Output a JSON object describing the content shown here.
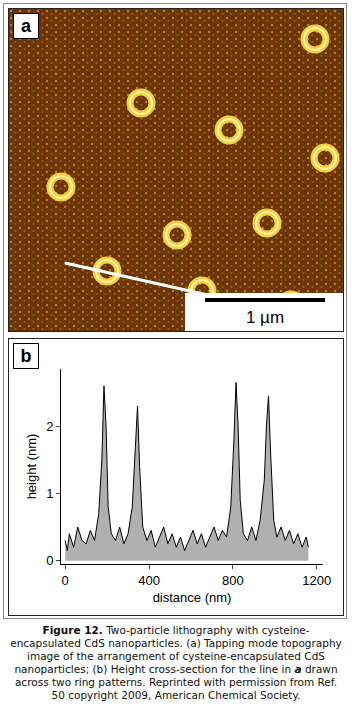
{
  "panel_a": {
    "label": "a",
    "scale_bar": "1 µm"
  },
  "chart_data": {
    "type": "area",
    "label": "b",
    "x_label": "distance (nm)",
    "y_label": "height (nm)",
    "x": [
      0,
      10,
      20,
      40,
      60,
      80,
      100,
      120,
      140,
      160,
      175,
      185,
      195,
      205,
      220,
      240,
      260,
      280,
      300,
      320,
      335,
      345,
      355,
      370,
      390,
      410,
      430,
      450,
      470,
      490,
      510,
      530,
      550,
      570,
      590,
      610,
      630,
      650,
      670,
      690,
      710,
      730,
      750,
      770,
      790,
      805,
      815,
      825,
      835,
      850,
      870,
      890,
      910,
      930,
      950,
      960,
      970,
      980,
      995,
      1010,
      1030,
      1050,
      1070,
      1090,
      1110,
      1130,
      1150,
      1160
    ],
    "values": [
      0.3,
      0.15,
      0.4,
      0.2,
      0.5,
      0.3,
      0.25,
      0.45,
      0.3,
      0.7,
      1.5,
      2.6,
      2.0,
      0.8,
      0.4,
      0.3,
      0.5,
      0.25,
      0.4,
      0.8,
      1.7,
      2.3,
      1.4,
      0.5,
      0.3,
      0.45,
      0.2,
      0.35,
      0.5,
      0.25,
      0.4,
      0.2,
      0.35,
      0.15,
      0.3,
      0.45,
      0.25,
      0.4,
      0.2,
      0.35,
      0.5,
      0.3,
      0.45,
      0.35,
      0.8,
      1.8,
      2.65,
      2.0,
      0.9,
      0.4,
      0.3,
      0.5,
      0.3,
      0.6,
      1.2,
      2.0,
      2.45,
      1.6,
      0.6,
      0.35,
      0.5,
      0.3,
      0.45,
      0.25,
      0.4,
      0.2,
      0.35,
      0.2
    ],
    "color": "#b0b0b0",
    "xlim": [
      -20,
      1230
    ],
    "ylim": [
      -0.05,
      2.85
    ],
    "xticks": [
      0,
      400,
      800,
      1200
    ],
    "yticks": [
      0,
      1,
      2
    ]
  },
  "caption": [
    {
      "text": "Figure 12.",
      "bold": true
    },
    {
      "text": " Two-particle lithography with cysteine-encapsulated CdS nanoparticles. (a) Tapping mode topography image of the arrangement of cysteine-encapsulated CdS nanoparticles; (b) Height cross-section for the line in "
    },
    {
      "text": "a",
      "italic": true,
      "bold": true
    },
    {
      "text": " drawn across two ring patterns. Reprinted with permission from Ref. 50 copyright 2009, American Chemical Society."
    }
  ]
}
